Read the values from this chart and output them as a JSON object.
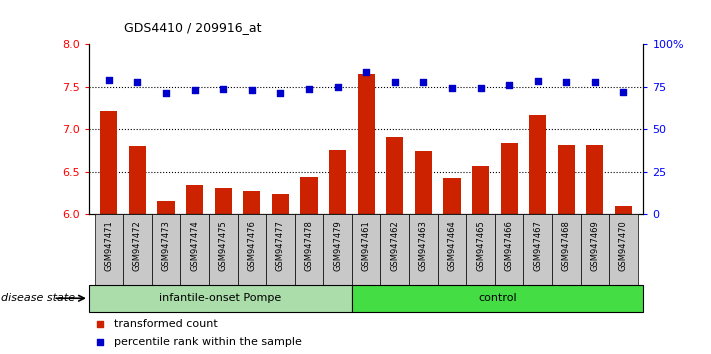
{
  "title": "GDS4410 / 209916_at",
  "samples": [
    "GSM947471",
    "GSM947472",
    "GSM947473",
    "GSM947474",
    "GSM947475",
    "GSM947476",
    "GSM947477",
    "GSM947478",
    "GSM947479",
    "GSM947461",
    "GSM947462",
    "GSM947463",
    "GSM947464",
    "GSM947465",
    "GSM947466",
    "GSM947467",
    "GSM947468",
    "GSM947469",
    "GSM947470"
  ],
  "red_values": [
    7.21,
    6.8,
    6.16,
    6.34,
    6.31,
    6.27,
    6.24,
    6.44,
    6.75,
    7.65,
    6.91,
    6.74,
    6.43,
    6.57,
    6.84,
    7.17,
    6.81,
    6.82,
    6.1
  ],
  "blue_values": [
    7.58,
    7.55,
    7.43,
    7.46,
    7.47,
    7.46,
    7.43,
    7.47,
    7.5,
    7.67,
    7.55,
    7.56,
    7.48,
    7.49,
    7.52,
    7.57,
    7.55,
    7.55,
    7.44
  ],
  "group1_count": 9,
  "group2_count": 10,
  "group1_label": "infantile-onset Pompe",
  "group2_label": "control",
  "group1_color": "#aaddaa",
  "group2_color": "#44dd44",
  "ylim_left": [
    6.0,
    8.0
  ],
  "yticks_left": [
    6.0,
    6.5,
    7.0,
    7.5,
    8.0
  ],
  "ylim_right": [
    0,
    100
  ],
  "yticks_right": [
    0,
    25,
    50,
    75,
    100
  ],
  "ytick_labels_right": [
    "0",
    "25",
    "50",
    "75",
    "100%"
  ],
  "bar_color": "#cc2200",
  "dot_color": "#0000cc",
  "cell_bg": "#c8c8c8",
  "disease_state_label": "disease state",
  "legend_red_label": "transformed count",
  "legend_blue_label": "percentile rank within the sample"
}
